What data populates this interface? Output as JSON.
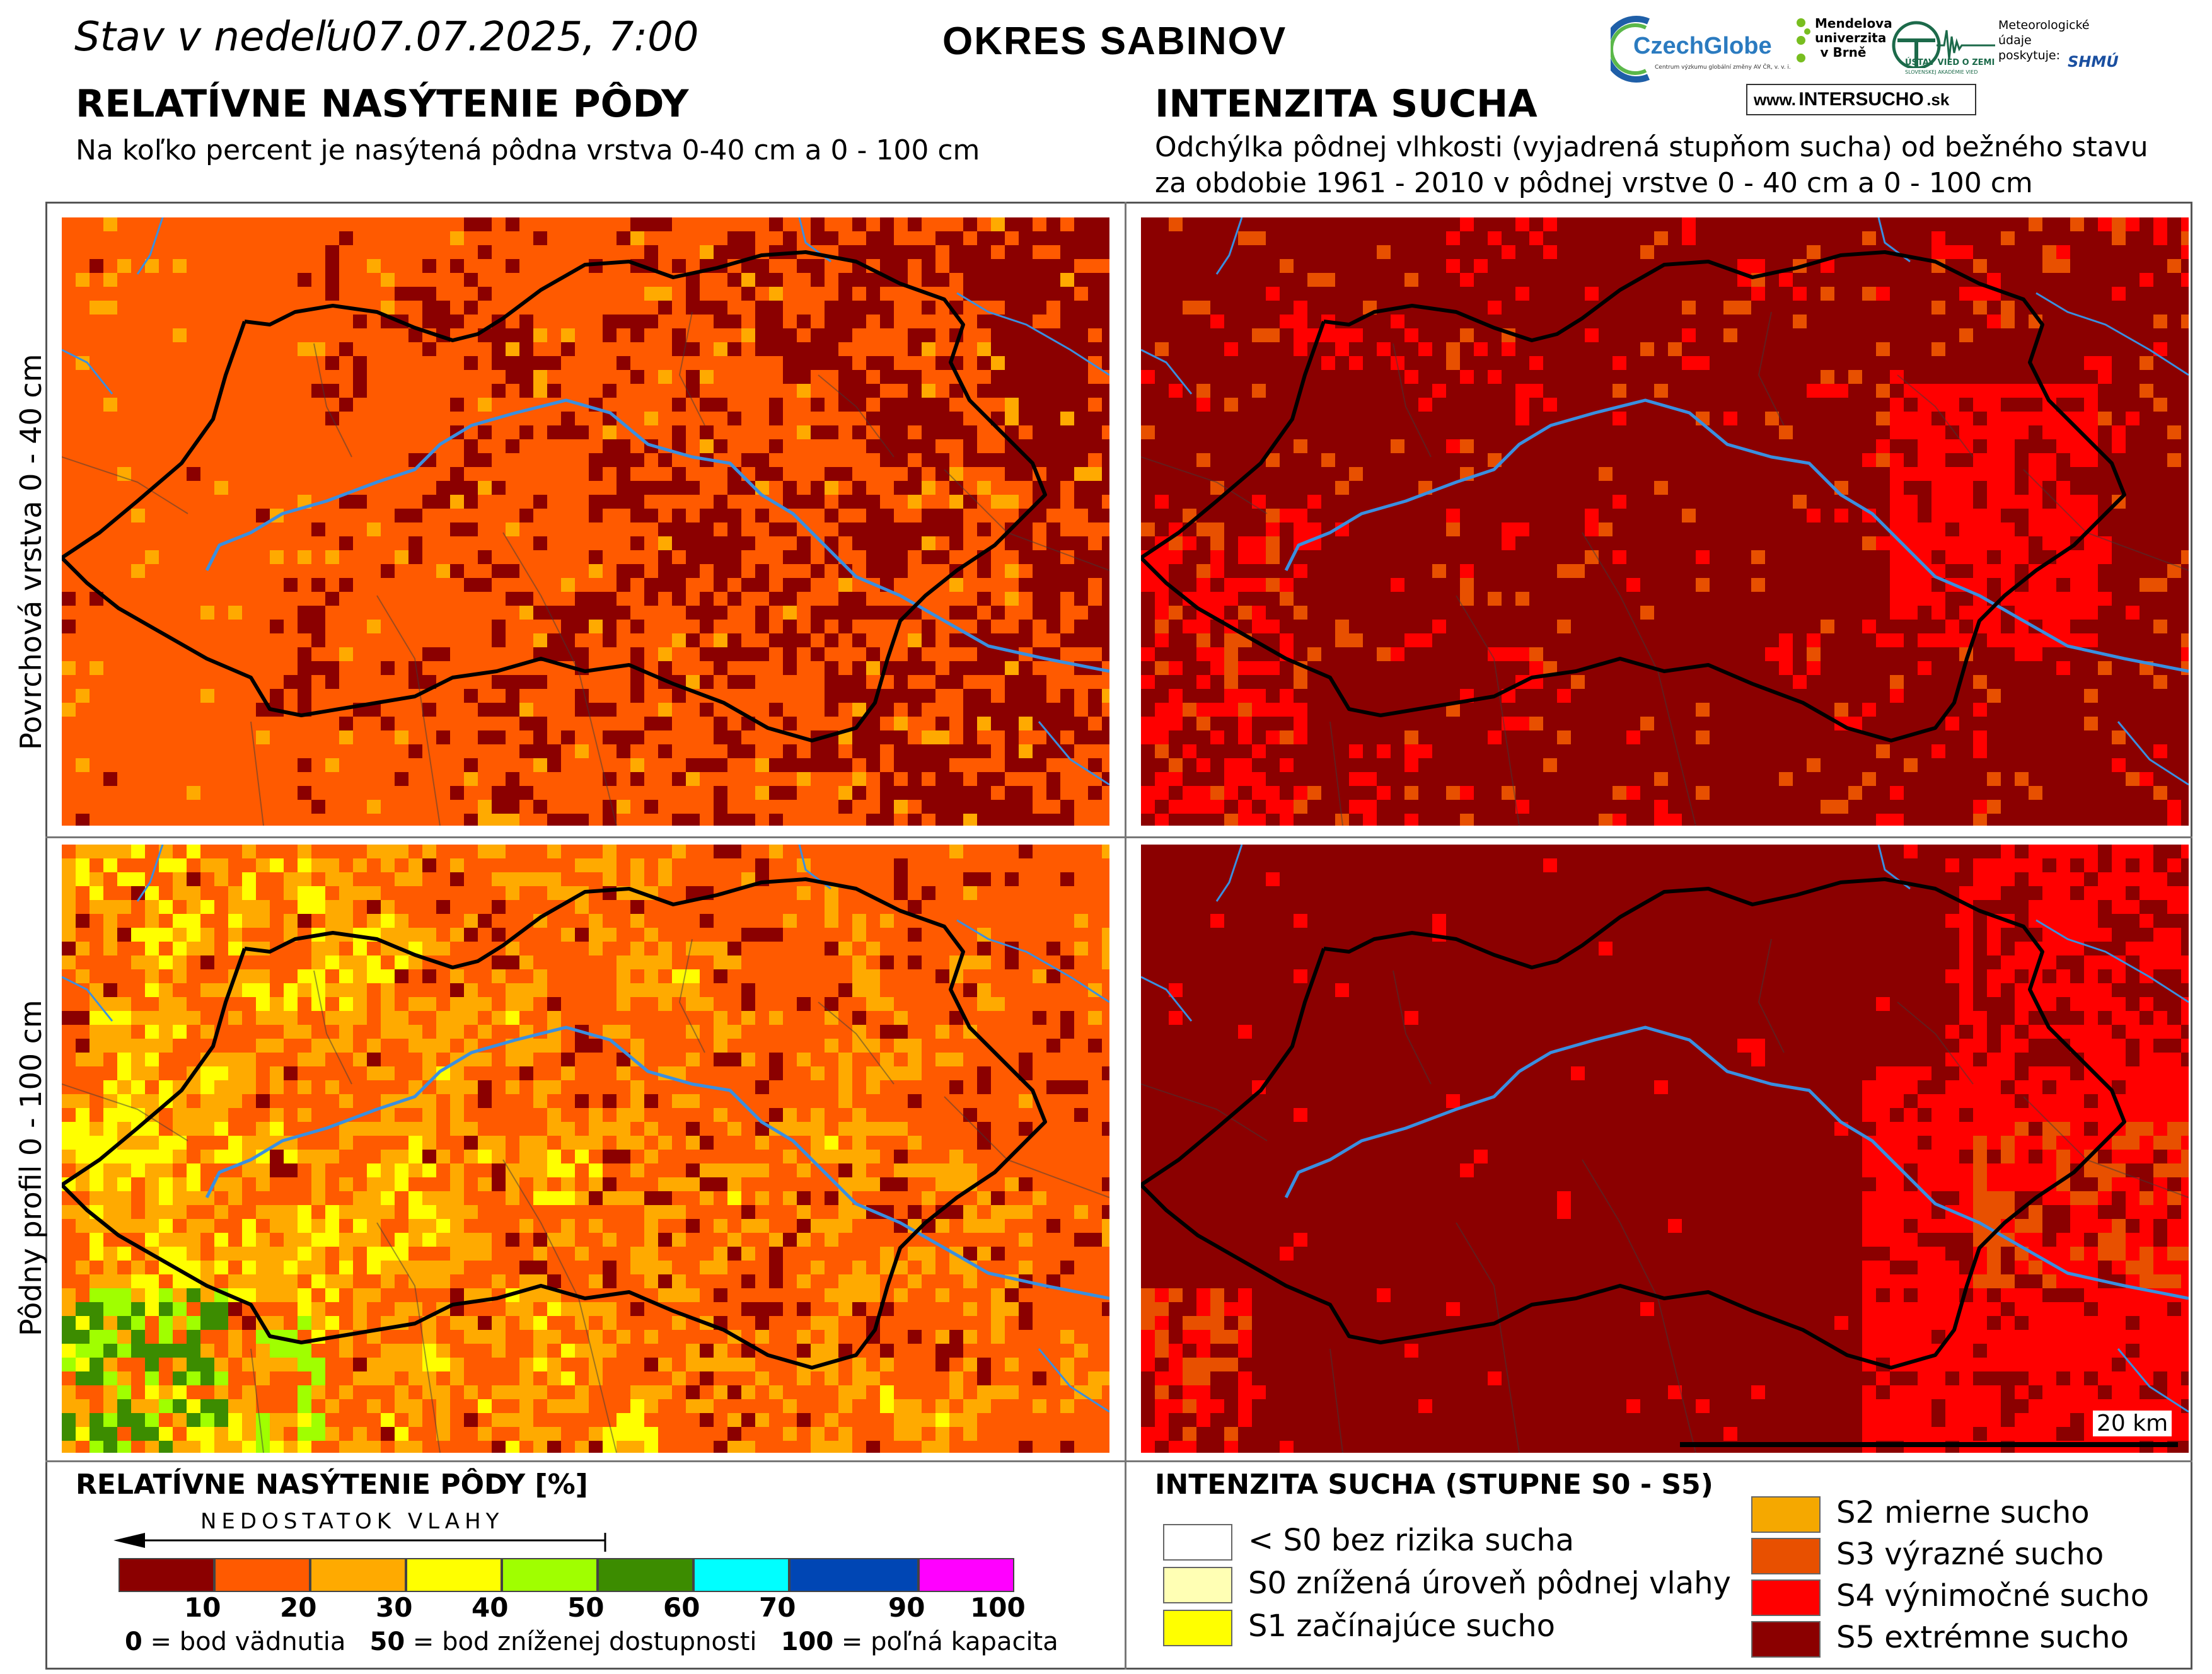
{
  "header": {
    "date_line": "Stav v nedeľu07.07.2025, 7:00",
    "district": "OKRES  SABINOV"
  },
  "logos": {
    "czechglobe": "CzechGlobe",
    "czechglobe_sub": "Centrum výzkumu globální změny AV ČR, v. v. i.",
    "mendel": "Mendelova univerzita v Brně",
    "uvz": "ÚSTAV VIED O ZEMI",
    "uvz_sub": "SLOVENSKEJ AKADÉMIE VIED",
    "meteo_note": "Meteorologické údaje poskytuje:",
    "shmu": "SHMÚ",
    "site_prefix": "www.",
    "site_main": "INTERSUCHO",
    "site_suffix": ".sk"
  },
  "left_section": {
    "title": "RELATÍVNE NASÝTENIE PÔDY",
    "subtitle": "Na koľko percent je nasýtená pôdna vrstva 0-40 cm a 0 - 100 cm"
  },
  "right_section": {
    "title": "INTENZITA SUCHA",
    "subtitle_line1": "Odchýlka pôdnej vlhkosti (vyjadrená stupňom sucha) od bežného stavu",
    "subtitle_line2": "za obdobie 1961 - 2010 v pôdnej vrstve 0 - 40 cm a 0 - 100 cm"
  },
  "row_labels": {
    "top": "Povrchová vrstva 0 - 40 cm",
    "bottom": "Pôdny profil 0 - 100 cm"
  },
  "scale_bar": "20 km",
  "saturation_legend": {
    "title": "RELATÍVNE NASÝTENIE PÔDY [%]",
    "arrow_label": "NEDOSTATOK VLAHY",
    "colors": [
      "#8b0000",
      "#ff5a00",
      "#ffaa00",
      "#ffff00",
      "#a0ff00",
      "#3c8c00",
      "#00ffff",
      "#0046b4",
      "#ff00ff"
    ],
    "ticks": [
      "10",
      "20",
      "30",
      "40",
      "50",
      "60",
      "70",
      "90",
      "100"
    ],
    "note_a_num": "0",
    "note_a_text": " = bod vädnutia",
    "note_b_num": "50",
    "note_b_text": " = bod zníženej dostupnosti",
    "note_c_num": "100",
    "note_c_text": " = poľná kapacita"
  },
  "drought_legend": {
    "title": "INTENZITA SUCHA (STUPNE S0 - S5)",
    "items": [
      {
        "label": "< S0 bez rizika sucha",
        "color": "#ffffff"
      },
      {
        "label": "S0 znížená úroveň pôdnej vlahy",
        "color": "#ffffb4"
      },
      {
        "label": "S1 začínajúce sucho",
        "color": "#ffff00"
      },
      {
        "label": "S2 mierne sucho",
        "color": "#f5a800"
      },
      {
        "label": "S3 výrazné sucho",
        "color": "#e85000"
      },
      {
        "label": "S4 výnimočné sucho",
        "color": "#ff0000"
      },
      {
        "label": "S5 extrémne sucho",
        "color": "#8b0000"
      }
    ]
  }
}
